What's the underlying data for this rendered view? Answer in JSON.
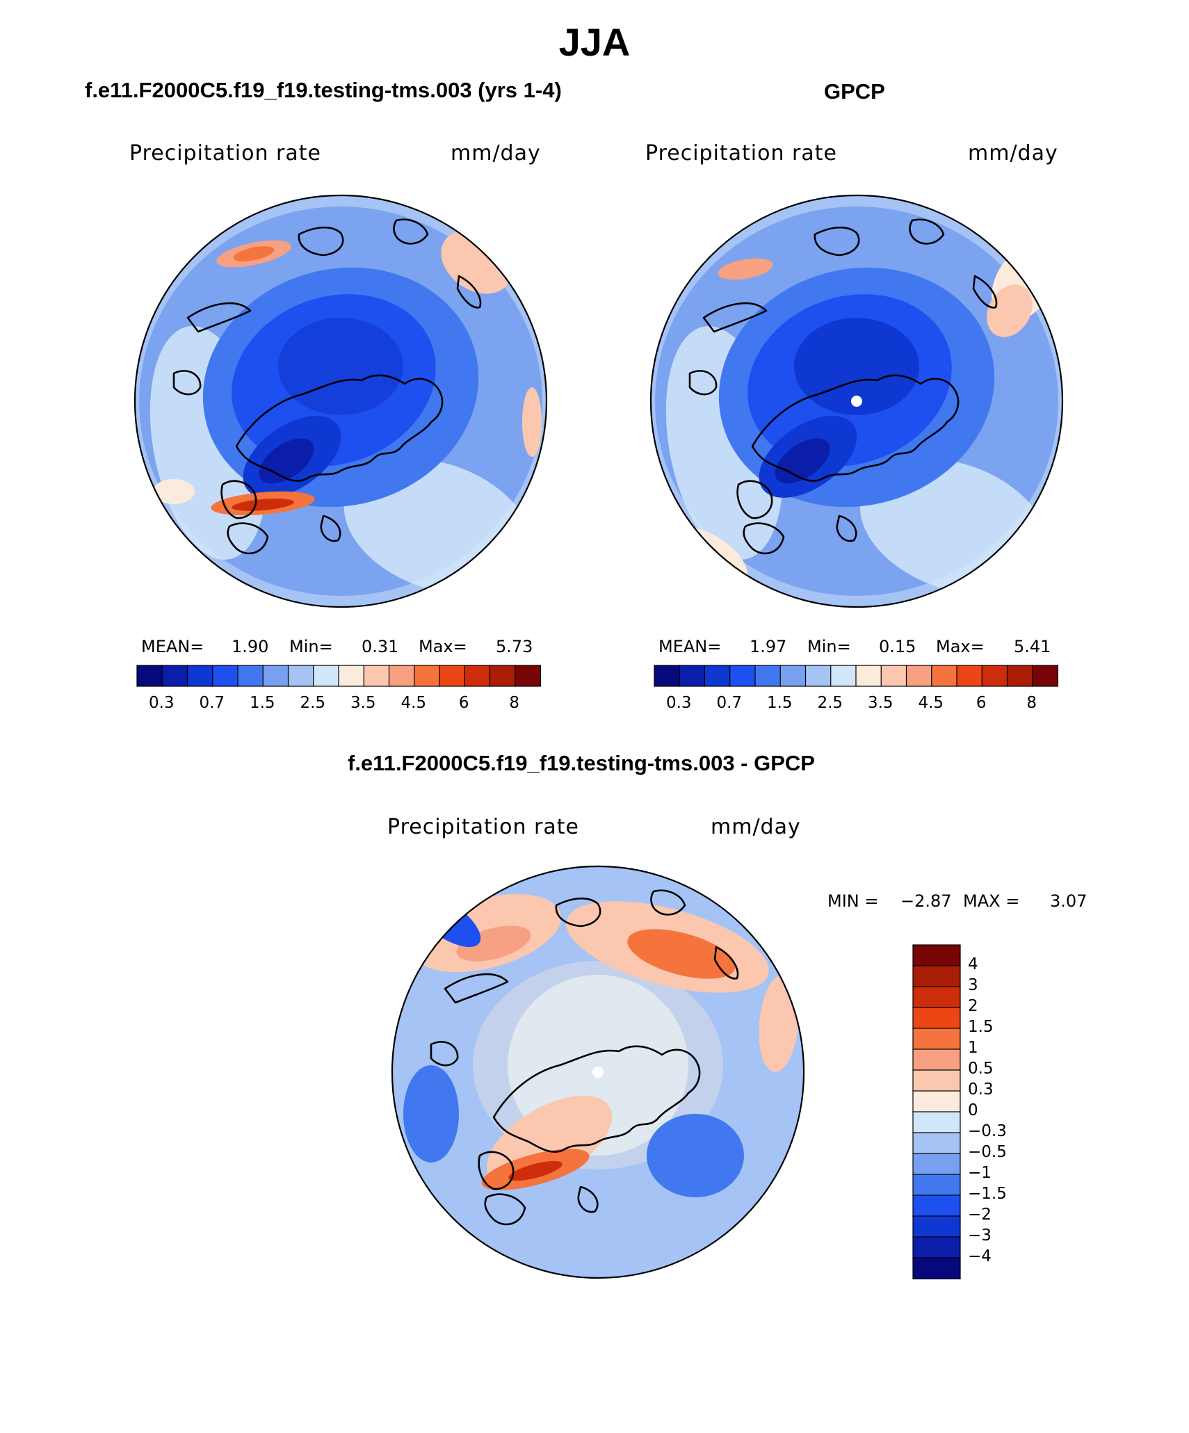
{
  "title": "JJA",
  "colors": {
    "abs_palette": [
      "#08087d",
      "#0a1eaa",
      "#0f37d2",
      "#1e50f0",
      "#4178f0",
      "#78a0f0",
      "#a5c3f5",
      "#d2e6fa",
      "#fbebdc",
      "#fbc8af",
      "#f7a082",
      "#f5733c",
      "#eb4614",
      "#cd2d0a",
      "#aa1e05",
      "#780505"
    ],
    "diff_palette": [
      "#08087d",
      "#0a1eaa",
      "#0f37d2",
      "#1e50f0",
      "#4178f0",
      "#78a0f0",
      "#a5c3f5",
      "#d2e6fa",
      "#fbebdc",
      "#fbc8af",
      "#f7a082",
      "#f5733c",
      "#eb4614",
      "#cd2d0a",
      "#aa1e05",
      "#780505"
    ]
  },
  "chart_data": [
    {
      "type": "heatmap",
      "projection": "north-polar-stereographic",
      "title": "f.e11.F2000C5.f19_f19.testing-tms.003 (yrs 1-4)",
      "variable": "Precipitation rate",
      "units": "mm/day",
      "stats": {
        "mean_label": "MEAN=",
        "mean": "1.90",
        "min_label": "Min=",
        "min": "0.31",
        "max_label": "Max=",
        "max": "5.73"
      },
      "colorbar_levels": [
        "0.3",
        "0.7",
        "1.5",
        "2.5",
        "3.5",
        "4.5",
        "6",
        "8"
      ]
    },
    {
      "type": "heatmap",
      "projection": "north-polar-stereographic",
      "title": "GPCP",
      "variable": "Precipitation rate",
      "units": "mm/day",
      "stats": {
        "mean_label": "MEAN=",
        "mean": "1.97",
        "min_label": "Min=",
        "min": "0.15",
        "max_label": "Max=",
        "max": "5.41"
      },
      "colorbar_levels": [
        "0.3",
        "0.7",
        "1.5",
        "2.5",
        "3.5",
        "4.5",
        "6",
        "8"
      ]
    },
    {
      "type": "heatmap",
      "projection": "north-polar-stereographic",
      "title": "f.e11.F2000C5.f19_f19.testing-tms.003 - GPCP",
      "variable": "Precipitation rate",
      "units": "mm/day",
      "stats": {
        "min_label": "MIN =",
        "min": "−2.87",
        "max_label": "MAX =",
        "max": "3.07"
      },
      "colorbar_levels": [
        "4",
        "3",
        "2",
        "1.5",
        "1",
        "0.5",
        "0.3",
        "0",
        "−0.3",
        "−0.5",
        "−1",
        "−1.5",
        "−2",
        "−3",
        "−4"
      ]
    }
  ]
}
